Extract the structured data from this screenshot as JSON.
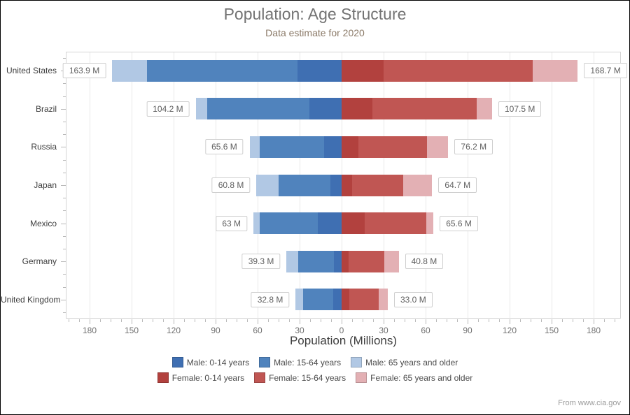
{
  "header": {
    "title": "Population: Age Structure",
    "subtitle": "Data estimate for 2020"
  },
  "source_note": "From www.cia.gov",
  "chart_data": {
    "type": "bar",
    "variant": "horizontal-diverging-stacked",
    "title": "Population: Age Structure",
    "subtitle": "Data estimate for 2020",
    "xlabel": "Population (Millions)",
    "ylabel": "",
    "xlim": [
      -197,
      199
    ],
    "x_tick_interval": 30,
    "x_tick_labels": [
      "180",
      "150",
      "120",
      "90",
      "60",
      "30",
      "0",
      "30",
      "60",
      "90",
      "120",
      "150",
      "180"
    ],
    "grid": true,
    "legend_position": "bottom",
    "categories": [
      "United States",
      "Brazil",
      "Russia",
      "Japan",
      "Mexico",
      "Germany",
      "United Kingdom"
    ],
    "series": [
      {
        "name": "Male: 0-14 years",
        "side": "left",
        "color": "#3f6fb2",
        "values": [
          31.4,
          22.8,
          12.6,
          8.0,
          17.0,
          5.3,
          5.9
        ]
      },
      {
        "name": "Male: 15-64 years",
        "side": "left",
        "color": "#5083bd",
        "values": [
          107.4,
          73.1,
          46.0,
          36.8,
          41.7,
          25.9,
          21.4
        ]
      },
      {
        "name": "Male: 65 years and older",
        "side": "left",
        "color": "#b1c8e4",
        "values": [
          25.1,
          8.3,
          7.0,
          16.0,
          4.3,
          8.1,
          5.5
        ]
      },
      {
        "name": "Female: 0-14 years",
        "side": "right",
        "color": "#b2413e",
        "values": [
          30.0,
          21.9,
          11.9,
          7.6,
          16.3,
          5.0,
          5.7
        ]
      },
      {
        "name": "Female: 15-64 years",
        "side": "right",
        "color": "#c05653",
        "values": [
          106.4,
          74.4,
          49.3,
          36.5,
          44.1,
          25.5,
          20.6
        ]
      },
      {
        "name": "Female: 65 years and older",
        "side": "right",
        "color": "#e3b0b4",
        "values": [
          32.3,
          11.2,
          15.0,
          20.6,
          5.2,
          10.3,
          6.7
        ]
      }
    ],
    "totals": {
      "male_labels": [
        "163.9 M",
        "104.2 M",
        "65.6 M",
        "60.8 M",
        "63 M",
        "39.3 M",
        "32.8 M"
      ],
      "female_labels": [
        "168.7 M",
        "107.5 M",
        "76.2 M",
        "64.7 M",
        "65.6 M",
        "40.8 M",
        "33.0 M"
      ]
    },
    "legend_rows": [
      [
        "Male: 0-14 years",
        "Male: 15-64 years",
        "Male: 65 years and older"
      ],
      [
        "Female: 0-14 years",
        "Female: 15-64 years",
        "Female: 65 years and older"
      ]
    ]
  }
}
